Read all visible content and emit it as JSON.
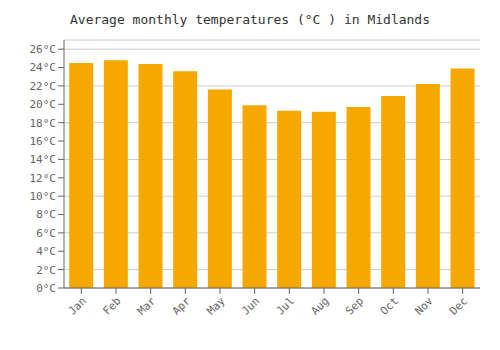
{
  "chart_data": {
    "type": "bar",
    "title": "Average monthly temperatures (°C ) in Midlands",
    "categories": [
      "Jan",
      "Feb",
      "Mar",
      "Apr",
      "May",
      "Jun",
      "Jul",
      "Aug",
      "Sep",
      "Oct",
      "Nov",
      "Dec"
    ],
    "values": [
      24.5,
      24.8,
      24.4,
      23.6,
      21.6,
      19.9,
      19.3,
      19.2,
      19.7,
      20.9,
      22.2,
      23.9
    ],
    "color": "#F5A800",
    "ylim": [
      0,
      27
    ],
    "yticks": [
      {
        "value": 0,
        "label": "0°C"
      },
      {
        "value": 2,
        "label": "2°C"
      },
      {
        "value": 4,
        "label": "4°C"
      },
      {
        "value": 6,
        "label": "6°C"
      },
      {
        "value": 8,
        "label": "8°C"
      },
      {
        "value": 10,
        "label": "10°C"
      },
      {
        "value": 12,
        "label": "12°C"
      },
      {
        "value": 14,
        "label": "14°C"
      },
      {
        "value": 16,
        "label": "16°C"
      },
      {
        "value": 18,
        "label": "18°C"
      },
      {
        "value": 20,
        "label": "20°C"
      },
      {
        "value": 22,
        "label": "22°C"
      },
      {
        "value": 24,
        "label": "24°C"
      },
      {
        "value": 26,
        "label": "26°C"
      }
    ],
    "grid": true
  }
}
